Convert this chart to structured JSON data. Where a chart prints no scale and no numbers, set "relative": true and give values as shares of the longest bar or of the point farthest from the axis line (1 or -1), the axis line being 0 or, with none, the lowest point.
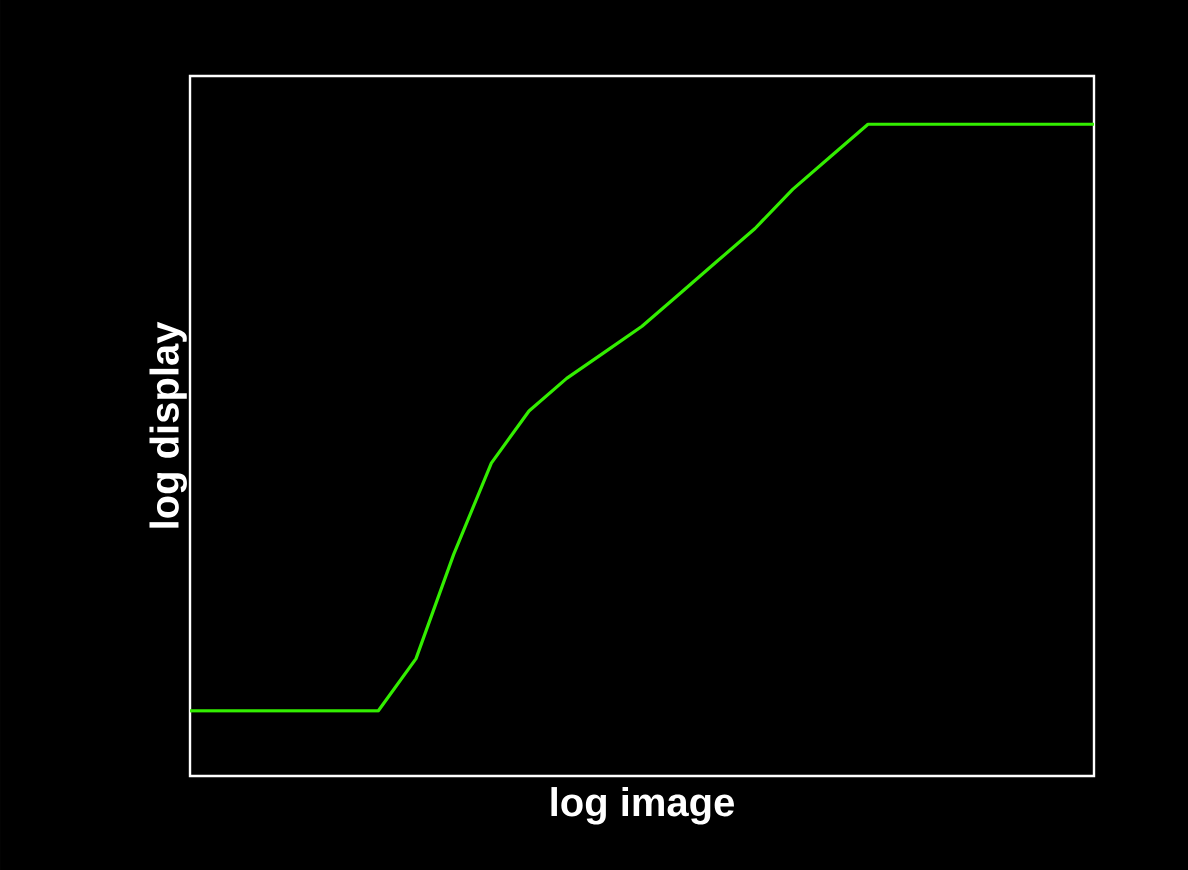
{
  "chart_data": {
    "type": "line",
    "relative": true,
    "xlabel": "log image",
    "ylabel": "log display",
    "categories": [
      null,
      null,
      null,
      null,
      null,
      null,
      null,
      null,
      null,
      null,
      null,
      null,
      null,
      null,
      null,
      null,
      null,
      null,
      null,
      null,
      null,
      null,
      null,
      null,
      null
    ],
    "series": [
      {
        "color": "#33ee00",
        "values": [
          0.1,
          0.1,
          0.1,
          0.1,
          0.1,
          0.1,
          0.18,
          0.34,
          0.48,
          0.56,
          0.61,
          0.65,
          0.69,
          0.74,
          0.79,
          0.84,
          0.9,
          0.95,
          1.0,
          1.0,
          1.0,
          1.0,
          1.0,
          1.0,
          1.0
        ]
      }
    ],
    "marker": "none",
    "line_style": "solid"
  }
}
